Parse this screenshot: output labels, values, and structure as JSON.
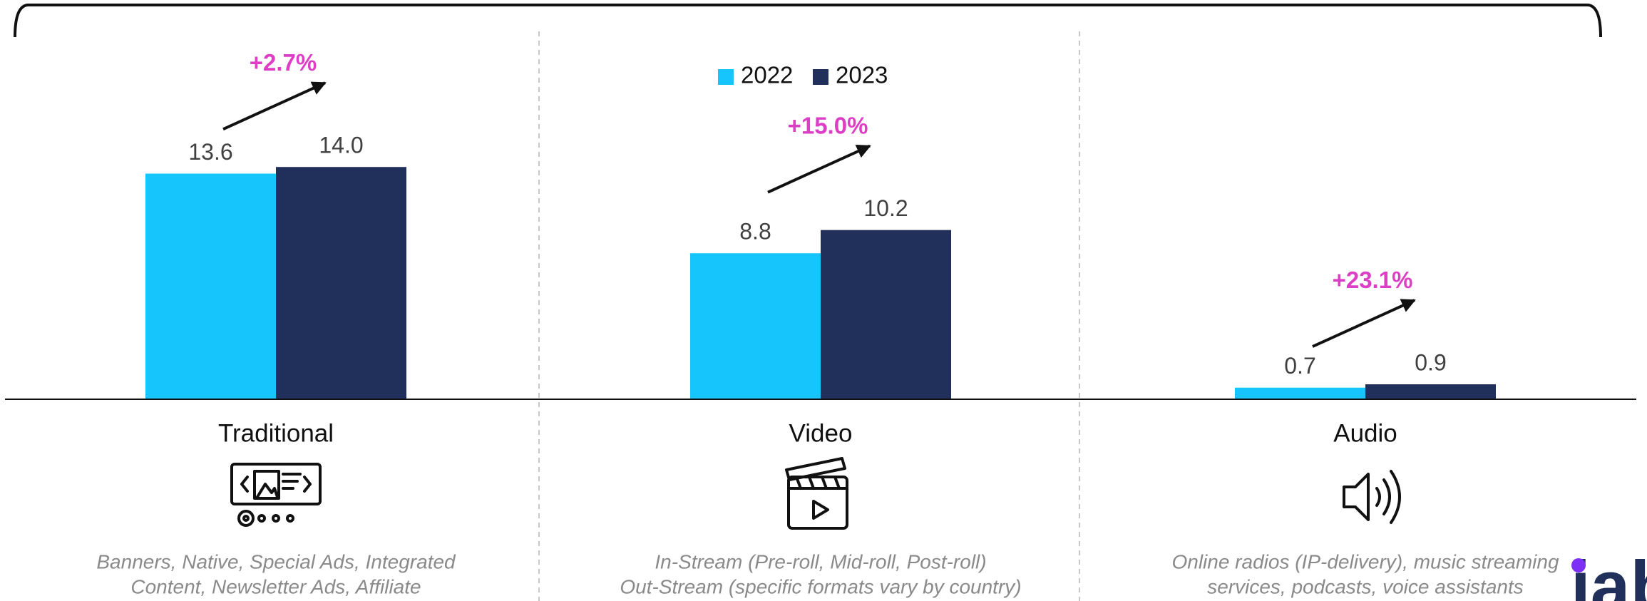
{
  "chart_data": {
    "type": "bar",
    "categories": [
      "Traditional",
      "Video",
      "Audio"
    ],
    "series": [
      {
        "name": "2022",
        "color": "#16c5fb",
        "values": [
          13.6,
          8.8,
          0.7
        ],
        "value_labels": [
          "13.6",
          "8.8",
          "0.7"
        ]
      },
      {
        "name": "2023",
        "color": "#21305b",
        "values": [
          14.0,
          10.2,
          0.9
        ],
        "value_labels": [
          "14.0",
          "10.2",
          "0.9"
        ]
      }
    ],
    "annotations": [
      "+2.7%",
      "+15.0%",
      "+23.1%"
    ],
    "descriptions": [
      [
        "Banners, Native, Special Ads, Integrated",
        "Content, Newsletter Ads, Affiliate"
      ],
      [
        "In-Stream (Pre-roll, Mid-roll, Post-roll)",
        "Out-Stream (specific formats vary by country)"
      ],
      [
        "Online radios (IP-delivery), music streaming",
        "services, podcasts, voice assistants"
      ]
    ],
    "legend": "top-center",
    "logo": "iab"
  }
}
